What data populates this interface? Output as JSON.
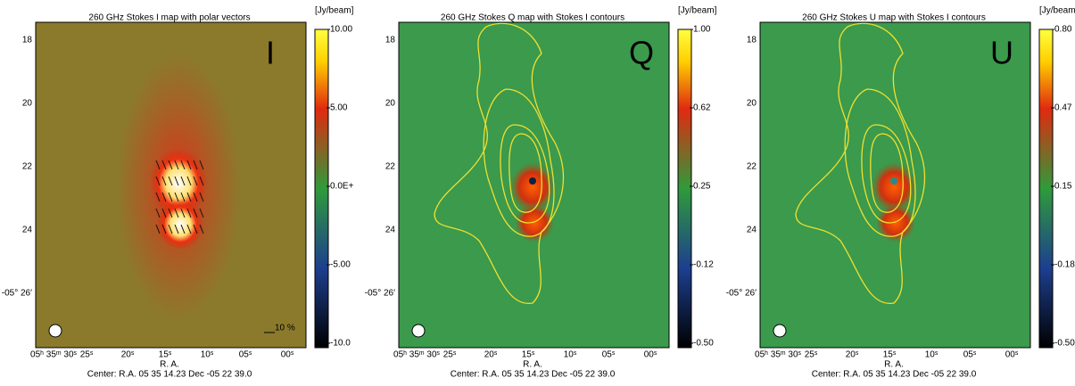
{
  "panels": [
    {
      "title": "260 GHz Stokes I map with polar vectors",
      "unit": "[Jy/beam]",
      "letter": "I",
      "scale_note": "10 %",
      "colorbar_ticks": [
        "10.00",
        "5.00",
        "0.0E+",
        "-5.00",
        "-10.0"
      ]
    },
    {
      "title": "260 GHz Stokes Q map with Stokes I contours",
      "unit": "[Jy/beam]",
      "letter": "Q",
      "colorbar_ticks": [
        "1.00",
        "0.62",
        "0.25",
        "-0.12",
        "-0.50"
      ]
    },
    {
      "title": "260 GHz Stokes U map with Stokes I contours",
      "unit": "[Jy/beam]",
      "letter": "U",
      "colorbar_ticks": [
        "0.80",
        "0.47",
        "0.15",
        "-0.18",
        "-0.50"
      ]
    }
  ],
  "y_ticks": [
    "18",
    "20",
    "22",
    "24",
    "-05° 26′"
  ],
  "x_ticks": [
    "05ʰ 35ᵐ 30ˢ",
    "25ˢ",
    "20ˢ",
    "15ˢ",
    "10ˢ",
    "05ˢ",
    "00ˢ"
  ],
  "x_label": "R. A.",
  "center": "Center:  R.A. 05 35 14.23    Dec  -05 22 39.0"
}
